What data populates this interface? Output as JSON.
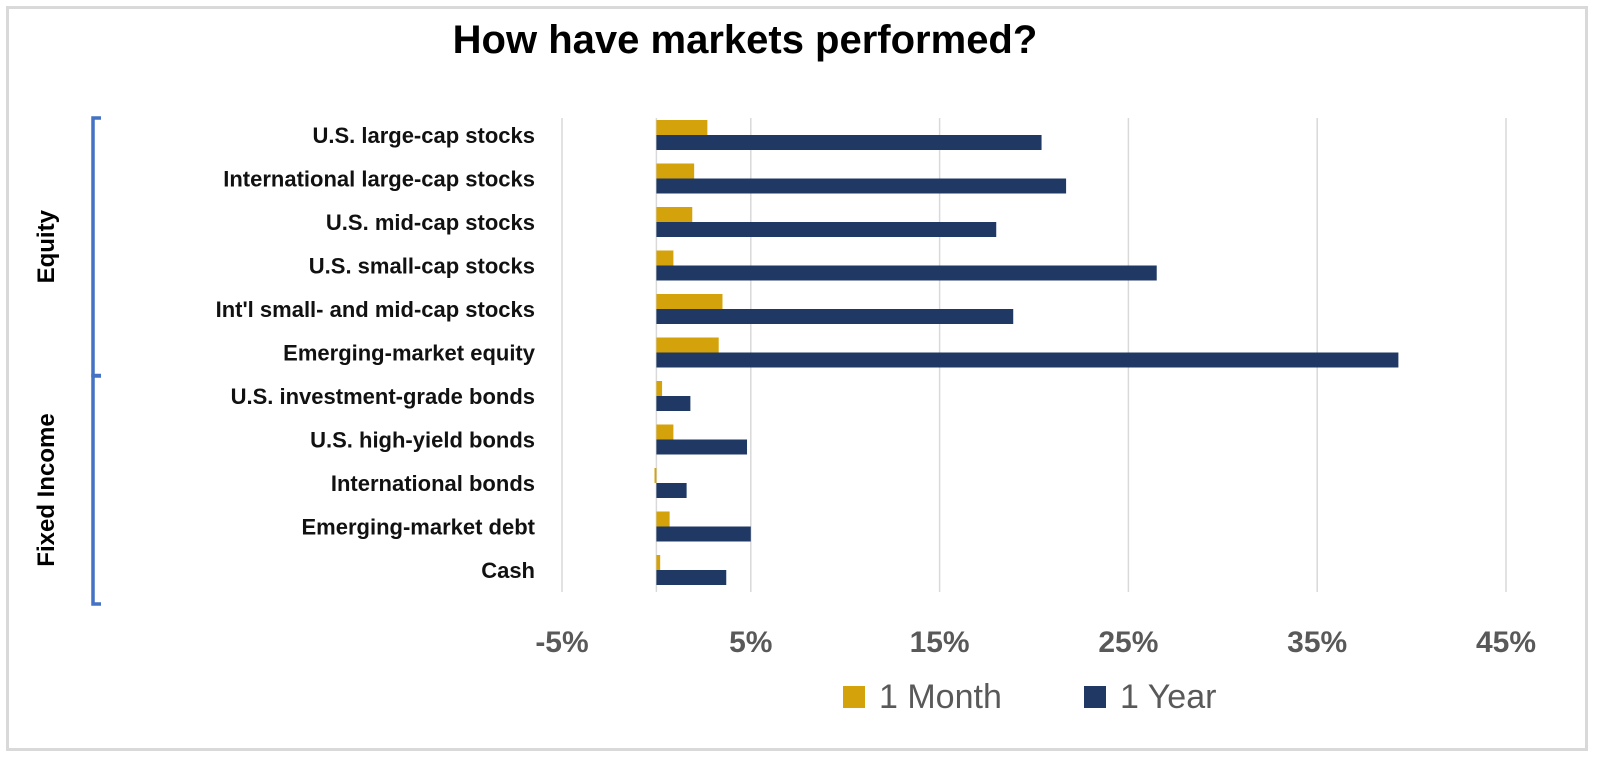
{
  "chart_data": {
    "type": "bar",
    "orientation": "horizontal",
    "title": "How have markets performed?",
    "categories": [
      "U.S. large-cap stocks",
      "International large-cap stocks",
      "U.S. mid-cap stocks",
      "U.S. small-cap stocks",
      "Int'l small- and mid-cap stocks",
      "Emerging-market equity",
      "U.S. investment-grade bonds",
      "U.S. high-yield bonds",
      "International bonds",
      "Emerging-market debt",
      "Cash"
    ],
    "groups": [
      {
        "label": "Equity",
        "categories": [
          0,
          5
        ]
      },
      {
        "label": "Fixed Income",
        "categories": [
          6,
          10
        ]
      }
    ],
    "series": [
      {
        "name": "1 Month",
        "color": "#D4A20A",
        "values": [
          2.7,
          2.0,
          1.9,
          0.9,
          3.5,
          3.3,
          0.3,
          0.9,
          -0.1,
          0.7,
          0.2
        ]
      },
      {
        "name": "1 Year",
        "color": "#1F3864",
        "values": [
          20.4,
          21.7,
          18.0,
          26.5,
          18.9,
          39.3,
          1.8,
          4.8,
          1.6,
          5.0,
          3.7
        ]
      }
    ],
    "xlim": [
      -5,
      45
    ],
    "xticks": [
      -5,
      5,
      15,
      25,
      35,
      45
    ],
    "xtick_labels": [
      "-5%",
      "5%",
      "15%",
      "25%",
      "35%",
      "45%"
    ],
    "grid": true,
    "legend_position": "bottom",
    "group_bracket_color": "#4472C4"
  }
}
